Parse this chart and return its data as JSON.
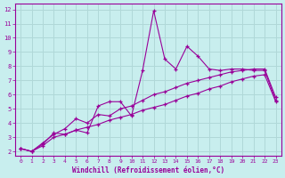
{
  "title": "",
  "xlabel": "Windchill (Refroidissement éolien,°C)",
  "ylabel": "",
  "background_color": "#c8eeee",
  "grid_color": "#b0d8d8",
  "line_color": "#990099",
  "xlim": [
    -0.5,
    23.5
  ],
  "ylim": [
    1.7,
    12.4
  ],
  "xticks": [
    0,
    1,
    2,
    3,
    4,
    5,
    6,
    7,
    8,
    9,
    10,
    11,
    12,
    13,
    14,
    15,
    16,
    17,
    18,
    19,
    20,
    21,
    22,
    23
  ],
  "yticks": [
    2,
    3,
    4,
    5,
    6,
    7,
    8,
    9,
    10,
    11,
    12
  ],
  "x": [
    0,
    1,
    2,
    3,
    4,
    5,
    6,
    7,
    8,
    9,
    10,
    11,
    12,
    13,
    14,
    15,
    16,
    17,
    18,
    19,
    20,
    21,
    22,
    23
  ],
  "line1": [
    2.2,
    2.0,
    2.5,
    3.3,
    3.2,
    3.5,
    3.3,
    5.2,
    5.5,
    5.5,
    4.5,
    7.7,
    11.9,
    8.5,
    7.8,
    9.4,
    8.7,
    7.8,
    7.7,
    7.8,
    7.8,
    7.7,
    7.7,
    5.6
  ],
  "line2": [
    2.2,
    2.0,
    2.6,
    3.2,
    3.6,
    4.3,
    4.0,
    4.6,
    4.5,
    5.0,
    5.2,
    5.6,
    6.0,
    6.2,
    6.5,
    6.8,
    7.0,
    7.2,
    7.4,
    7.6,
    7.7,
    7.8,
    7.8,
    5.8
  ],
  "line3": [
    2.2,
    2.0,
    2.4,
    3.0,
    3.2,
    3.5,
    3.7,
    3.9,
    4.2,
    4.4,
    4.6,
    4.9,
    5.1,
    5.3,
    5.6,
    5.9,
    6.1,
    6.4,
    6.6,
    6.9,
    7.1,
    7.3,
    7.4,
    5.5
  ]
}
